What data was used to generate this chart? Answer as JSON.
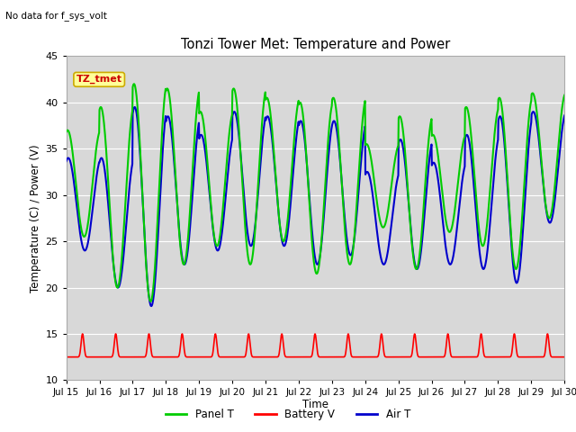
{
  "title": "Tonzi Tower Met: Temperature and Power",
  "subtitle": "No data for f_sys_volt",
  "xlabel": "Time",
  "ylabel": "Temperature (C) / Power (V)",
  "ylim": [
    10,
    45
  ],
  "xlim": [
    0,
    15
  ],
  "xtick_labels": [
    "Jul 15",
    "Jul 16",
    "Jul 17",
    "Jul 18",
    "Jul 19",
    "Jul 20",
    "Jul 21",
    "Jul 22",
    "Jul 23",
    "Jul 24",
    "Jul 25",
    "Jul 26",
    "Jul 27",
    "Jul 28",
    "Jul 29",
    "Jul 30"
  ],
  "xtick_positions": [
    0,
    1,
    2,
    3,
    4,
    5,
    6,
    7,
    8,
    9,
    10,
    11,
    12,
    13,
    14,
    15
  ],
  "ytick_positions": [
    10,
    15,
    20,
    25,
    30,
    35,
    40,
    45
  ],
  "fig_bg_color": "#ffffff",
  "plot_bg_color": "#d8d8d8",
  "grid_color": "#ffffff",
  "panel_t_color": "#00cc00",
  "battery_v_color": "#ff0000",
  "air_t_color": "#0000cc",
  "annotation_text": "TZ_tmet",
  "annotation_color": "#cc0000",
  "annotation_bg": "#ffff99",
  "annotation_edge": "#ccaa00",
  "peak_panel": [
    37.0,
    39.5,
    42.0,
    41.5,
    39.0,
    41.5,
    40.5,
    40.0,
    40.5,
    35.5,
    38.5,
    36.5,
    39.5,
    40.5,
    41.0
  ],
  "min_panel": [
    25.5,
    20.0,
    18.5,
    22.5,
    24.5,
    22.5,
    25.0,
    21.5,
    22.5,
    26.5,
    22.0,
    26.0,
    24.5,
    22.0,
    27.5
  ],
  "peak_air": [
    34.0,
    34.0,
    39.5,
    38.5,
    36.5,
    39.0,
    38.5,
    38.0,
    38.0,
    32.5,
    36.0,
    33.5,
    36.5,
    38.5,
    39.0
  ],
  "min_air": [
    24.0,
    20.0,
    18.0,
    22.5,
    24.0,
    24.5,
    24.5,
    22.5,
    23.5,
    22.5,
    22.0,
    22.5,
    22.0,
    20.5,
    27.0
  ],
  "n_per_day": 96,
  "n_days": 15
}
